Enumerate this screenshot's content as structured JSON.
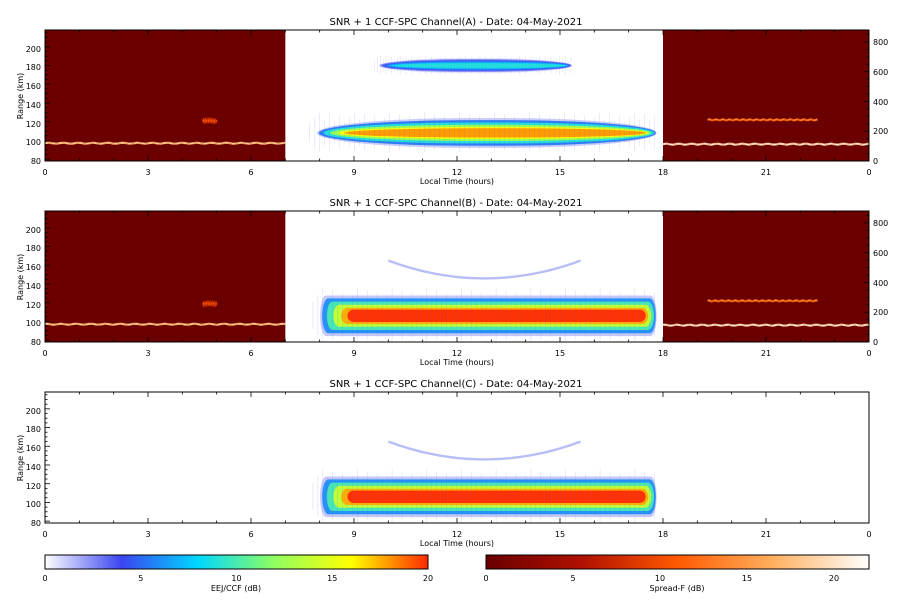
{
  "chart_data": [
    {
      "type": "heatmap",
      "title": "SNR + 1 CCF-SPC Channel(A) - Date: 04-May-2021",
      "xlabel": "Local Time (hours)",
      "ylabel": "Range (km)",
      "xlim": [
        0,
        24
      ],
      "ylim": [
        78,
        218
      ],
      "x_ticks": [
        "0",
        "3",
        "6",
        "9",
        "12",
        "15",
        "18",
        "21",
        "0"
      ],
      "y_ticks": [
        "80",
        "100",
        "120",
        "140",
        "160",
        "180",
        "200"
      ],
      "y2lim": [
        0,
        880
      ],
      "y2_ticks": [
        "0",
        "200",
        "400",
        "600",
        "800"
      ],
      "night_regions": [
        [
          0,
          7
        ],
        [
          18,
          24
        ]
      ],
      "night_traces": [
        {
          "t0": 0,
          "t1": 7,
          "range": 97,
          "value": 17
        },
        {
          "t0": 18,
          "t1": 24,
          "range": 96,
          "value": 19
        },
        {
          "t0": 19.3,
          "t1": 22.5,
          "range": 122,
          "value": 12
        },
        {
          "t0": 4.6,
          "t1": 5.0,
          "range": 121,
          "value": 8
        }
      ],
      "echo_layers": [
        {
          "t0": 7.7,
          "t1": 17.9,
          "range_center": 108,
          "range_halfwidth": 14,
          "peak": 18
        },
        {
          "t0": 9.6,
          "t1": 15.4,
          "range_center": 180,
          "range_halfwidth": 7,
          "peak": 9
        }
      ]
    },
    {
      "type": "heatmap",
      "title": "SNR + 1 CCF-SPC Channel(B) - Date: 04-May-2021",
      "xlabel": "Local Time (hours)",
      "ylabel": "Range (km)",
      "xlim": [
        0,
        24
      ],
      "ylim": [
        78,
        218
      ],
      "x_ticks": [
        "0",
        "3",
        "6",
        "9",
        "12",
        "15",
        "18",
        "21",
        "0"
      ],
      "y_ticks": [
        "80",
        "100",
        "120",
        "140",
        "160",
        "180",
        "200"
      ],
      "y2lim": [
        0,
        880
      ],
      "y2_ticks": [
        "0",
        "200",
        "400",
        "600",
        "800"
      ],
      "night_regions": [
        [
          0,
          7
        ],
        [
          18,
          24
        ]
      ],
      "night_traces": [
        {
          "t0": 0,
          "t1": 7,
          "range": 97,
          "value": 17
        },
        {
          "t0": 18,
          "t1": 24,
          "range": 96,
          "value": 19
        },
        {
          "t0": 19.3,
          "t1": 22.5,
          "range": 122,
          "value": 12
        },
        {
          "t0": 4.6,
          "t1": 5.0,
          "range": 119,
          "value": 8
        }
      ],
      "echo_layers": [
        {
          "t0": 7.8,
          "t1": 17.9,
          "range_center": 106,
          "range_halfwidth": 19,
          "peak": 20
        }
      ],
      "arc": {
        "t0": 10.0,
        "t1": 15.6,
        "range_edge": 165,
        "range_mid": 146
      }
    },
    {
      "type": "heatmap",
      "title": "SNR + 1 CCF-SPC Channel(C) - Date: 04-May-2021",
      "xlabel": "Local Time (hours)",
      "ylabel": "Range (km)",
      "xlim": [
        0,
        24
      ],
      "ylim": [
        78,
        218
      ],
      "x_ticks": [
        "0",
        "3",
        "6",
        "9",
        "12",
        "15",
        "18",
        "21",
        "0"
      ],
      "y_ticks": [
        "80",
        "100",
        "120",
        "140",
        "160",
        "180",
        "200"
      ],
      "night_regions": [],
      "night_traces": [],
      "echo_layers": [
        {
          "t0": 7.8,
          "t1": 17.9,
          "range_center": 106,
          "range_halfwidth": 19,
          "peak": 20
        }
      ],
      "arc": {
        "t0": 10.0,
        "t1": 15.6,
        "range_edge": 165,
        "range_mid": 146
      }
    }
  ],
  "colorbars": [
    {
      "label": "EEJ/CCF (dB)",
      "range": [
        0,
        20
      ],
      "ticks": [
        "0",
        "5",
        "10",
        "15",
        "20"
      ],
      "stops": [
        "#ffffff",
        "#3a45f0",
        "#00d8ff",
        "#90ff60",
        "#ffff00",
        "#ff2a00"
      ]
    },
    {
      "label": "Spread-F (dB)",
      "range": [
        0,
        22
      ],
      "ticks": [
        "0",
        "5",
        "10",
        "15",
        "20"
      ],
      "stops": [
        "#6a0000",
        "#b01000",
        "#ff5a00",
        "#ffb060",
        "#ffffff"
      ]
    }
  ]
}
